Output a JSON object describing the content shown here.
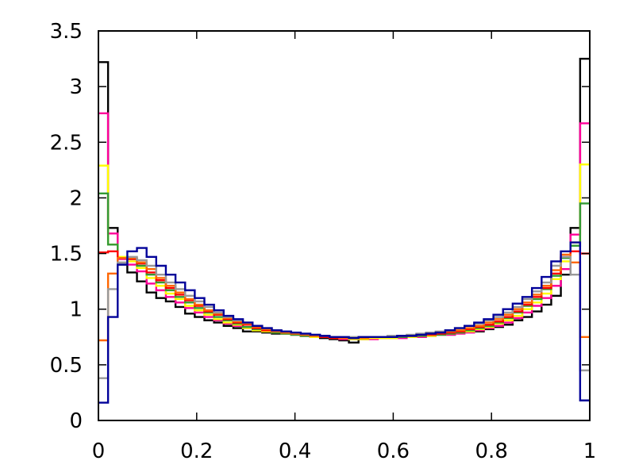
{
  "chart_data": {
    "type": "line",
    "title": "",
    "xlabel": "",
    "ylabel": "",
    "xlim": [
      0,
      1
    ],
    "ylim": [
      0,
      3.5
    ],
    "xticks": [
      "0",
      "0.2",
      "0.4",
      "0.6",
      "0.8",
      "1"
    ],
    "yticks": [
      "0",
      "0.5",
      "1",
      "1.5",
      "2",
      "2.5",
      "3",
      "3.5"
    ],
    "grid": false,
    "legend": "none",
    "bins": 50,
    "series": [
      {
        "color": "#000000",
        "values": [
          3.22,
          1.73,
          1.4,
          1.33,
          1.25,
          1.15,
          1.1,
          1.07,
          1.02,
          0.96,
          0.93,
          0.9,
          0.88,
          0.85,
          0.83,
          0.8,
          0.8,
          0.79,
          0.78,
          0.78,
          0.77,
          0.76,
          0.75,
          0.74,
          0.73,
          0.72,
          0.7,
          0.73,
          0.74,
          0.74,
          0.74,
          0.75,
          0.76,
          0.76,
          0.76,
          0.77,
          0.77,
          0.79,
          0.8,
          0.8,
          0.82,
          0.84,
          0.86,
          0.9,
          0.93,
          0.98,
          1.04,
          1.12,
          1.31,
          1.73,
          3.25
        ]
      },
      {
        "color": "#ff0099",
        "values": [
          2.76,
          1.68,
          1.45,
          1.4,
          1.34,
          1.23,
          1.17,
          1.11,
          1.06,
          1.01,
          0.97,
          0.93,
          0.9,
          0.87,
          0.85,
          0.83,
          0.81,
          0.8,
          0.79,
          0.78,
          0.77,
          0.76,
          0.75,
          0.75,
          0.74,
          0.73,
          0.73,
          0.73,
          0.73,
          0.74,
          0.74,
          0.74,
          0.75,
          0.75,
          0.76,
          0.77,
          0.77,
          0.78,
          0.79,
          0.81,
          0.83,
          0.85,
          0.88,
          0.92,
          0.97,
          1.03,
          1.1,
          1.21,
          1.36,
          1.67,
          2.67
        ]
      },
      {
        "color": "#ffff00",
        "values": [
          2.29,
          1.58,
          1.47,
          1.43,
          1.37,
          1.28,
          1.21,
          1.14,
          1.09,
          1.03,
          0.99,
          0.95,
          0.91,
          0.88,
          0.86,
          0.83,
          0.81,
          0.8,
          0.79,
          0.78,
          0.77,
          0.76,
          0.75,
          0.75,
          0.74,
          0.74,
          0.73,
          0.73,
          0.74,
          0.74,
          0.74,
          0.75,
          0.75,
          0.76,
          0.76,
          0.77,
          0.78,
          0.79,
          0.8,
          0.82,
          0.84,
          0.87,
          0.9,
          0.94,
          1.0,
          1.06,
          1.14,
          1.27,
          1.43,
          1.6,
          2.3
        ]
      },
      {
        "color": "#339933",
        "values": [
          2.04,
          1.58,
          1.46,
          1.45,
          1.39,
          1.31,
          1.24,
          1.17,
          1.11,
          1.06,
          1.01,
          0.97,
          0.93,
          0.9,
          0.87,
          0.84,
          0.82,
          0.81,
          0.79,
          0.78,
          0.77,
          0.76,
          0.76,
          0.75,
          0.74,
          0.74,
          0.74,
          0.74,
          0.75,
          0.75,
          0.75,
          0.75,
          0.76,
          0.76,
          0.77,
          0.77,
          0.78,
          0.79,
          0.81,
          0.83,
          0.85,
          0.88,
          0.92,
          0.97,
          1.03,
          1.09,
          1.18,
          1.3,
          1.46,
          1.57,
          1.95
        ]
      },
      {
        "color": "#ff0000",
        "values": [
          1.51,
          1.52,
          1.46,
          1.45,
          1.41,
          1.33,
          1.26,
          1.19,
          1.13,
          1.08,
          1.03,
          0.98,
          0.95,
          0.91,
          0.88,
          0.86,
          0.83,
          0.81,
          0.8,
          0.79,
          0.78,
          0.77,
          0.76,
          0.75,
          0.74,
          0.74,
          0.74,
          0.75,
          0.75,
          0.75,
          0.75,
          0.76,
          0.76,
          0.77,
          0.77,
          0.78,
          0.79,
          0.8,
          0.82,
          0.84,
          0.86,
          0.89,
          0.93,
          0.98,
          1.04,
          1.11,
          1.19,
          1.32,
          1.47,
          1.52,
          1.5
        ]
      },
      {
        "color": "#ff6600",
        "values": [
          0.72,
          1.32,
          1.46,
          1.46,
          1.42,
          1.36,
          1.28,
          1.21,
          1.15,
          1.09,
          1.04,
          0.99,
          0.96,
          0.92,
          0.89,
          0.87,
          0.84,
          0.82,
          0.8,
          0.79,
          0.78,
          0.77,
          0.76,
          0.76,
          0.75,
          0.74,
          0.74,
          0.74,
          0.75,
          0.75,
          0.75,
          0.76,
          0.76,
          0.77,
          0.78,
          0.79,
          0.8,
          0.81,
          0.83,
          0.85,
          0.88,
          0.91,
          0.95,
          1.0,
          1.06,
          1.13,
          1.21,
          1.35,
          1.49,
          1.42,
          0.75
        ]
      },
      {
        "color": "#999999",
        "values": [
          0.38,
          1.18,
          1.42,
          1.47,
          1.44,
          1.39,
          1.31,
          1.24,
          1.18,
          1.12,
          1.07,
          1.02,
          0.97,
          0.93,
          0.9,
          0.88,
          0.85,
          0.83,
          0.81,
          0.8,
          0.79,
          0.78,
          0.77,
          0.76,
          0.75,
          0.75,
          0.75,
          0.75,
          0.75,
          0.75,
          0.76,
          0.76,
          0.77,
          0.78,
          0.79,
          0.8,
          0.81,
          0.83,
          0.85,
          0.87,
          0.9,
          0.93,
          0.97,
          1.02,
          1.09,
          1.16,
          1.24,
          1.39,
          1.47,
          1.31,
          0.45
        ]
      },
      {
        "color": "#000099",
        "values": [
          0.16,
          0.93,
          1.4,
          1.52,
          1.55,
          1.47,
          1.39,
          1.31,
          1.24,
          1.17,
          1.1,
          1.04,
          0.99,
          0.94,
          0.91,
          0.88,
          0.85,
          0.83,
          0.81,
          0.8,
          0.79,
          0.78,
          0.77,
          0.76,
          0.75,
          0.75,
          0.74,
          0.75,
          0.75,
          0.75,
          0.75,
          0.76,
          0.76,
          0.77,
          0.78,
          0.79,
          0.81,
          0.83,
          0.85,
          0.88,
          0.91,
          0.95,
          1.0,
          1.05,
          1.11,
          1.19,
          1.29,
          1.43,
          1.52,
          1.6,
          0.18
        ]
      }
    ]
  }
}
